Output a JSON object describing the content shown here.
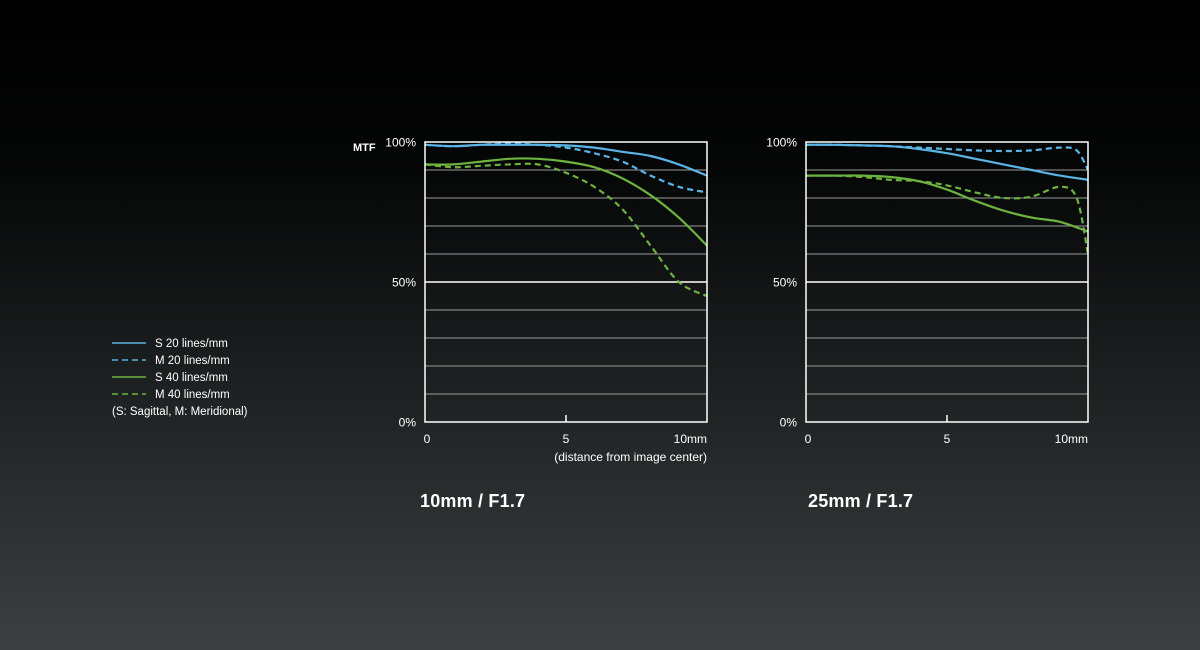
{
  "colors": {
    "s20": "#5ab4e5",
    "m20": "#5ab4e5",
    "s40": "#6db33f",
    "m40": "#6db33f",
    "grid": "#9a9a9a",
    "axis": "#ffffff"
  },
  "mtf_label": "MTF",
  "x_note": "(distance from image center)",
  "legend": {
    "items": [
      {
        "label": "S 20 lines/mm",
        "color": "#5ab4e5",
        "dash": false
      },
      {
        "label": "M 20 lines/mm",
        "color": "#5ab4e5",
        "dash": true
      },
      {
        "label": "S 40 lines/mm",
        "color": "#6db33f",
        "dash": false
      },
      {
        "label": "M 40 lines/mm",
        "color": "#6db33f",
        "dash": true
      }
    ],
    "note": "(S: Sagittal, M: Meridional)"
  },
  "chart_data": [
    {
      "type": "line",
      "title": "10mm / F1.7",
      "ylabel": "MTF",
      "xlabel": "(distance from image center)",
      "xlim": [
        0,
        10
      ],
      "ylim": [
        0,
        100
      ],
      "x_ticks": [
        "0",
        "5",
        "10mm"
      ],
      "y_ticks": [
        "0%",
        "50%",
        "100%"
      ],
      "grid": true,
      "series": [
        {
          "name": "S 20 lines/mm",
          "style": "solid",
          "color": "#5ab4e5",
          "x": [
            0,
            1,
            2,
            3,
            4,
            5,
            6,
            7,
            8,
            9,
            10
          ],
          "y": [
            99,
            98.5,
            99,
            99,
            99,
            98.8,
            98,
            96.5,
            95,
            92,
            88
          ]
        },
        {
          "name": "M 20 lines/mm",
          "style": "dashed",
          "color": "#5ab4e5",
          "x": [
            0,
            1,
            2,
            3,
            4,
            5,
            6,
            7,
            8,
            9,
            10
          ],
          "y": [
            99,
            98.5,
            99,
            99.5,
            99,
            98,
            96,
            93,
            88,
            84,
            82
          ]
        },
        {
          "name": "S 40 lines/mm",
          "style": "solid",
          "color": "#6db33f",
          "x": [
            0,
            1,
            2,
            3,
            4,
            5,
            6,
            7,
            8,
            9,
            10
          ],
          "y": [
            92,
            92,
            93,
            94,
            94,
            93,
            91,
            87,
            81,
            73,
            63
          ]
        },
        {
          "name": "M 40 lines/mm",
          "style": "dashed",
          "color": "#6db33f",
          "x": [
            0,
            1,
            2,
            3,
            4,
            5,
            6,
            7,
            8,
            9,
            10
          ],
          "y": [
            92,
            91,
            91.5,
            92,
            92,
            89,
            84,
            76,
            63,
            50,
            45
          ]
        }
      ]
    },
    {
      "type": "line",
      "title": "25mm / F1.7",
      "xlim": [
        0,
        10
      ],
      "ylim": [
        0,
        100
      ],
      "x_ticks": [
        "0",
        "5",
        "10mm"
      ],
      "y_ticks": [
        "0%",
        "50%",
        "100%"
      ],
      "grid": true,
      "series": [
        {
          "name": "S 20 lines/mm",
          "style": "solid",
          "color": "#5ab4e5",
          "x": [
            0,
            1,
            2,
            3,
            4,
            5,
            6,
            7,
            8,
            9,
            10
          ],
          "y": [
            99,
            99,
            98.8,
            98.5,
            97.5,
            96,
            94,
            92,
            90,
            88,
            86.5
          ]
        },
        {
          "name": "M 20 lines/mm",
          "style": "dashed",
          "color": "#5ab4e5",
          "x": [
            0,
            1,
            2,
            3,
            4,
            5,
            6,
            7,
            8,
            9,
            9.6,
            10
          ],
          "y": [
            99,
            99,
            98.8,
            98.5,
            98,
            97.5,
            97,
            96.8,
            97,
            98,
            97,
            90
          ]
        },
        {
          "name": "S 40 lines/mm",
          "style": "solid",
          "color": "#6db33f",
          "x": [
            0,
            1,
            2,
            3,
            4,
            5,
            6,
            7,
            8,
            9,
            10
          ],
          "y": [
            88,
            88,
            88,
            87.5,
            86,
            83,
            79,
            75.5,
            73,
            71.5,
            68
          ]
        },
        {
          "name": "M 40 lines/mm",
          "style": "dashed",
          "color": "#6db33f",
          "x": [
            0,
            1,
            2,
            3,
            4,
            5,
            6,
            7,
            8,
            9,
            9.6,
            10
          ],
          "y": [
            88,
            88,
            87.5,
            86.5,
            86,
            84.5,
            82,
            80,
            80.5,
            84,
            80,
            60
          ]
        }
      ]
    }
  ]
}
